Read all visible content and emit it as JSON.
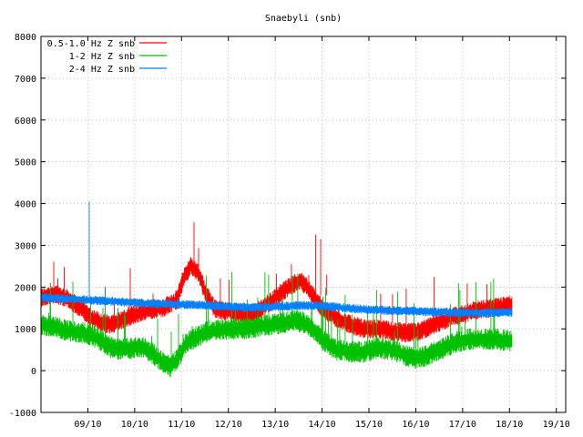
{
  "chart_data": {
    "type": "line",
    "title": "Snaebyli (snb)",
    "xlabel": "",
    "ylabel": "",
    "ylim": [
      -1000,
      8000
    ],
    "yticks": [
      -1000,
      0,
      1000,
      2000,
      3000,
      4000,
      5000,
      6000,
      7000,
      8000
    ],
    "x_range_days": [
      8.0,
      19.2
    ],
    "xtick_labels": [
      "09/10",
      "10/10",
      "11/10",
      "12/10",
      "13/10",
      "14/10",
      "15/10",
      "16/10",
      "17/10",
      "18/10",
      "19/10"
    ],
    "xtick_days": [
      9,
      10,
      11,
      12,
      13,
      14,
      15,
      16,
      17,
      18,
      19
    ],
    "grid": true,
    "legend_position": "top-left",
    "series": [
      {
        "name": "0.5-1.0 Hz Z snb",
        "color": "#ff0000",
        "x": [
          8.0,
          8.3,
          8.6,
          8.9,
          9.1,
          9.3,
          9.5,
          9.7,
          10.0,
          10.3,
          10.6,
          10.9,
          11.05,
          11.2,
          11.35,
          11.5,
          11.7,
          12.0,
          12.3,
          12.6,
          12.9,
          13.1,
          13.3,
          13.5,
          13.65,
          13.8,
          14.0,
          14.3,
          14.6,
          14.9,
          15.2,
          15.5,
          15.8,
          16.1,
          16.4,
          16.7,
          17.0,
          17.3,
          17.6,
          17.9,
          18.05
        ],
        "y": [
          1750,
          1850,
          1700,
          1450,
          1250,
          1150,
          1100,
          1200,
          1350,
          1450,
          1500,
          1700,
          2250,
          2500,
          2350,
          1900,
          1500,
          1400,
          1350,
          1400,
          1650,
          1850,
          2000,
          2150,
          2050,
          1800,
          1500,
          1250,
          1100,
          1000,
          1000,
          950,
          900,
          950,
          1100,
          1250,
          1350,
          1450,
          1500,
          1550,
          1600
        ]
      },
      {
        "name": "1-2 Hz Z snb",
        "color": "#00c000",
        "x": [
          8.0,
          8.3,
          8.6,
          8.9,
          9.1,
          9.3,
          9.5,
          9.7,
          10.0,
          10.2,
          10.4,
          10.6,
          10.75,
          10.9,
          11.1,
          11.3,
          11.6,
          12.0,
          12.3,
          12.6,
          12.9,
          13.2,
          13.4,
          13.6,
          13.8,
          14.0,
          14.3,
          14.6,
          14.9,
          15.2,
          15.5,
          15.8,
          16.0,
          16.2,
          16.5,
          16.8,
          17.1,
          17.4,
          17.7,
          18.05
        ],
        "y": [
          1100,
          1050,
          950,
          900,
          850,
          700,
          550,
          500,
          550,
          550,
          400,
          200,
          100,
          250,
          650,
          800,
          950,
          1000,
          1000,
          1050,
          1100,
          1150,
          1200,
          1150,
          1000,
          750,
          500,
          450,
          450,
          550,
          500,
          350,
          300,
          350,
          500,
          650,
          750,
          750,
          750,
          700
        ]
      },
      {
        "name": "2-4 Hz Z snb",
        "color": "#0080ff",
        "x": [
          8.0,
          8.5,
          9.0,
          9.5,
          10.0,
          10.5,
          11.0,
          11.5,
          12.0,
          12.5,
          13.0,
          13.5,
          14.0,
          14.5,
          15.0,
          15.5,
          16.0,
          16.5,
          17.0,
          17.5,
          18.05
        ],
        "y": [
          1750,
          1720,
          1690,
          1660,
          1630,
          1600,
          1580,
          1560,
          1530,
          1510,
          1530,
          1560,
          1550,
          1500,
          1460,
          1440,
          1420,
          1400,
          1380,
          1380,
          1400
        ]
      }
    ]
  }
}
